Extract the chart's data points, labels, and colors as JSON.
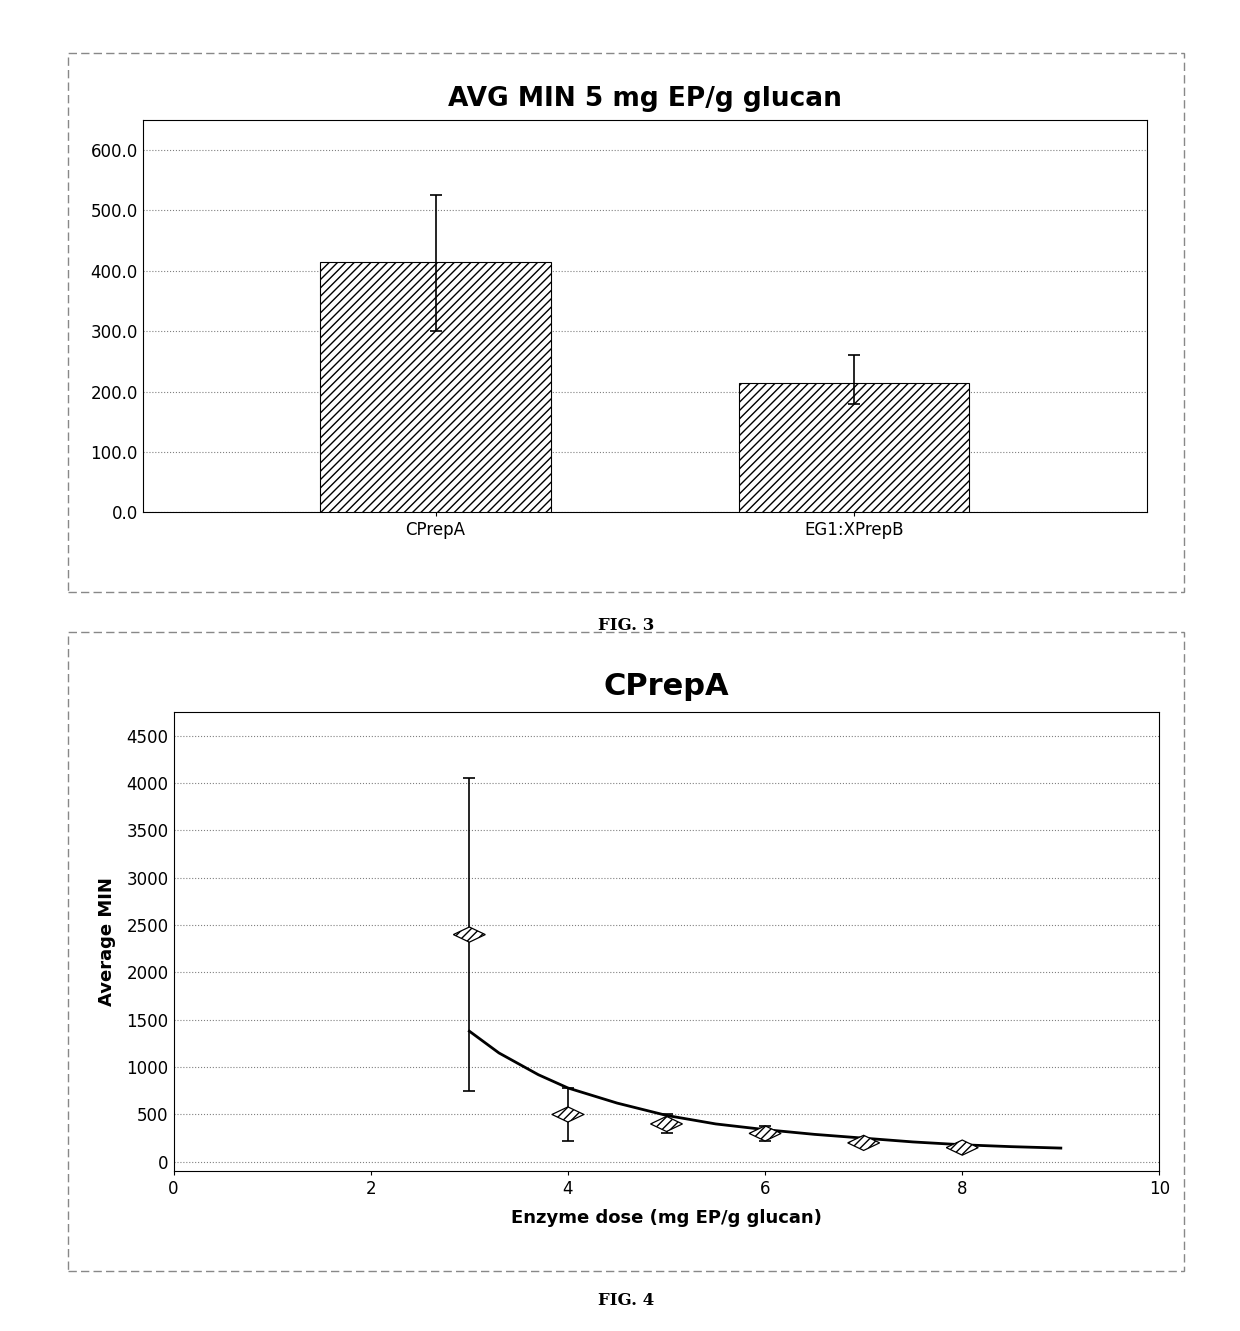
{
  "fig3": {
    "title": "AVG MIN 5 mg EP/g glucan",
    "categories": [
      "CPrepA",
      "EG1:XPrepB"
    ],
    "values": [
      415.0,
      215.0
    ],
    "errors_plus": [
      110.0,
      45.0
    ],
    "errors_minus": [
      115.0,
      35.0
    ],
    "ylim": [
      0,
      650
    ],
    "yticks": [
      0.0,
      100.0,
      200.0,
      300.0,
      400.0,
      500.0,
      600.0
    ],
    "hatch": "////",
    "bar_color": "white",
    "bar_edgecolor": "black",
    "title_fontsize": 19,
    "tick_fontsize": 12,
    "label_fontsize": 12
  },
  "fig3_caption": "FIG. 3",
  "fig4": {
    "title": "CPrepA",
    "xlabel": "Enzyme dose (mg EP/g glucan)",
    "ylabel": "Average MIN",
    "x_data": [
      3.0,
      4.0,
      5.0,
      6.0,
      7.0,
      8.0
    ],
    "y_data": [
      2400.0,
      500.0,
      400.0,
      300.0,
      200.0,
      150.0
    ],
    "errors_plus": [
      1650.0,
      280.0,
      100.0,
      80.0,
      40.0,
      50.0
    ],
    "errors_minus": [
      1650.0,
      280.0,
      100.0,
      80.0,
      40.0,
      50.0
    ],
    "xlim": [
      0,
      10
    ],
    "ylim": [
      -50,
      4750
    ],
    "xticks": [
      0,
      2,
      4,
      6,
      8,
      10
    ],
    "yticks": [
      0,
      500,
      1000,
      1500,
      2000,
      2500,
      3000,
      3500,
      4000,
      4500
    ],
    "curve_x": [
      3.0,
      3.3,
      3.7,
      4.0,
      4.5,
      5.0,
      5.5,
      6.0,
      6.5,
      7.0,
      7.5,
      8.0,
      8.5,
      9.0
    ],
    "curve_y": [
      1380.0,
      1150.0,
      920.0,
      780.0,
      620.0,
      490.0,
      400.0,
      340.0,
      290.0,
      250.0,
      210.0,
      180.0,
      160.0,
      145.0
    ],
    "title_fontsize": 22,
    "tick_fontsize": 12,
    "label_fontsize": 13
  },
  "fig4_caption": "FIG. 4",
  "background_color": "#ffffff"
}
